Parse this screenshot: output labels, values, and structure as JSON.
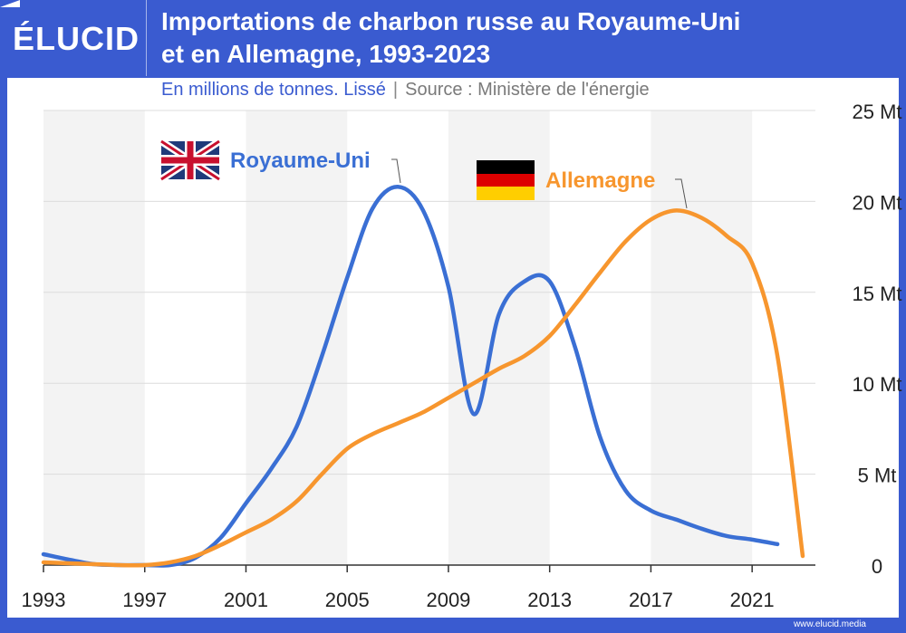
{
  "header": {
    "logo": "ÉLUCID",
    "title_line1": "Importations de charbon russe au Royaume-Uni",
    "title_line2": "et en Allemagne, 1993-2023",
    "subtitle": "En millions de tonnes. Lissé",
    "separator": "|",
    "source": "Source : Ministère de l'énergie"
  },
  "footer": {
    "url": "www.elucid.media"
  },
  "colors": {
    "brand": "#3a5bd0",
    "uk": "#3a6fd4",
    "de": "#f7962e",
    "band": "#f3f3f3"
  },
  "chart_data": {
    "type": "line",
    "title": "Importations de charbon russe au Royaume-Uni et en Allemagne, 1993-2023",
    "subtitle": "En millions de tonnes. Lissé",
    "xlim": [
      1993,
      2023
    ],
    "ylim": [
      0,
      25
    ],
    "x_ticks": [
      1993,
      1997,
      2001,
      2005,
      2009,
      2013,
      2017,
      2021
    ],
    "x_tick_labels": [
      "1993",
      "1997",
      "2001",
      "2005",
      "2009",
      "2013",
      "2017",
      "2021"
    ],
    "y_ticks": [
      0,
      5,
      10,
      15,
      20,
      25
    ],
    "y_tick_labels": [
      "0",
      "5 Mt",
      "10 Mt",
      "15 Mt",
      "20 Mt",
      "25 Mt"
    ],
    "y_axis_position": "right",
    "grid": true,
    "series": [
      {
        "name": "Royaume-Uni",
        "color": "#3a6fd4",
        "points": [
          [
            1993,
            0.6
          ],
          [
            1994,
            0.3
          ],
          [
            1995,
            0.05
          ],
          [
            1996,
            0
          ],
          [
            1997,
            0
          ],
          [
            1998,
            0
          ],
          [
            1999,
            0.4
          ],
          [
            2000,
            1.5
          ],
          [
            2001,
            3.4
          ],
          [
            2002,
            5.3
          ],
          [
            2003,
            7.6
          ],
          [
            2004,
            11.5
          ],
          [
            2005,
            15.8
          ],
          [
            2006,
            19.6
          ],
          [
            2007,
            20.8
          ],
          [
            2008,
            19.5
          ],
          [
            2009,
            15.3
          ],
          [
            2010,
            8.3
          ],
          [
            2011,
            13.8
          ],
          [
            2012,
            15.6
          ],
          [
            2013,
            15.6
          ],
          [
            2014,
            12.0
          ],
          [
            2015,
            7.0
          ],
          [
            2016,
            4.1
          ],
          [
            2017,
            3.0
          ],
          [
            2018,
            2.5
          ],
          [
            2019,
            2.0
          ],
          [
            2020,
            1.6
          ],
          [
            2021,
            1.4
          ],
          [
            2022,
            1.15
          ]
        ]
      },
      {
        "name": "Allemagne",
        "color": "#f7962e",
        "points": [
          [
            1993,
            0.15
          ],
          [
            1994,
            0.1
          ],
          [
            1995,
            0.05
          ],
          [
            1996,
            0
          ],
          [
            1997,
            0
          ],
          [
            1998,
            0.15
          ],
          [
            1999,
            0.5
          ],
          [
            2000,
            1.1
          ],
          [
            2001,
            1.8
          ],
          [
            2002,
            2.5
          ],
          [
            2003,
            3.5
          ],
          [
            2004,
            5.0
          ],
          [
            2005,
            6.4
          ],
          [
            2006,
            7.2
          ],
          [
            2007,
            7.8
          ],
          [
            2008,
            8.4
          ],
          [
            2009,
            9.2
          ],
          [
            2010,
            10.0
          ],
          [
            2011,
            10.8
          ],
          [
            2012,
            11.5
          ],
          [
            2013,
            12.6
          ],
          [
            2014,
            14.3
          ],
          [
            2015,
            16.1
          ],
          [
            2016,
            17.8
          ],
          [
            2017,
            19.0
          ],
          [
            2018,
            19.5
          ],
          [
            2019,
            19.1
          ],
          [
            2020,
            18.1
          ],
          [
            2021,
            16.6
          ],
          [
            2022,
            11.5
          ],
          [
            2023,
            0.5
          ]
        ]
      }
    ],
    "annotations": [
      {
        "series": "Royaume-Uni",
        "text": "Royaume-Uni",
        "flag": "uk-flag"
      },
      {
        "series": "Allemagne",
        "text": "Allemagne",
        "flag": "germany-flag"
      }
    ]
  }
}
